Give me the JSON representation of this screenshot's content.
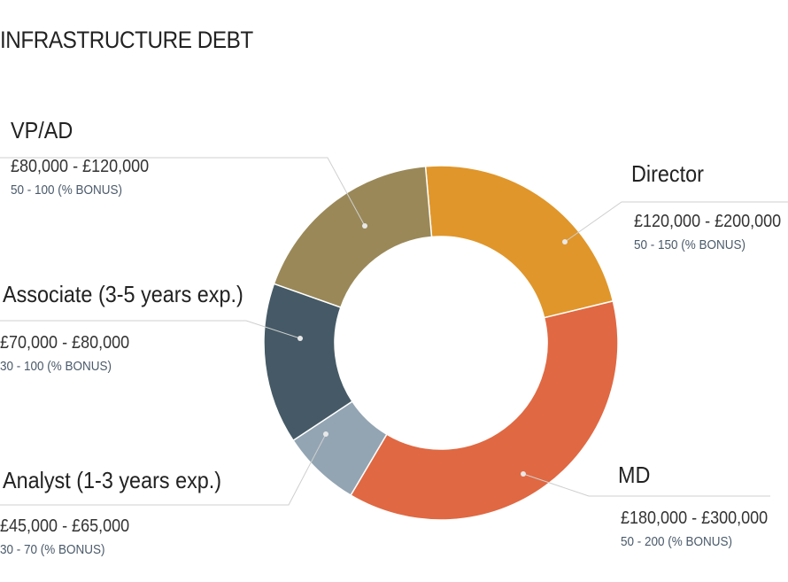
{
  "title": "INFRASTRUCTURE DEBT",
  "chart_data": {
    "type": "pie",
    "variant": "donut",
    "title": "INFRASTRUCTURE DEBT",
    "slices": [
      {
        "name": "Director",
        "salary": "£120,000 - £200,000",
        "bonus": "50 - 150 (% BONUS)",
        "share": 0.226,
        "color": "#E0962A"
      },
      {
        "name": "MD",
        "salary": "£180,000 - £300,000",
        "bonus": "50 - 200 (% BONUS)",
        "share": 0.373,
        "color": "#E06842"
      },
      {
        "name": "Analyst (1-3 years exp.)",
        "salary": "£45,000 - £65,000",
        "bonus": "30 - 70 (% BONUS)",
        "share": 0.072,
        "color": "#93A5B3"
      },
      {
        "name": "Associate (3-5 years exp.)",
        "salary": "£70,000 - £80,000",
        "bonus": "30 - 100 (% BONUS)",
        "share": 0.147,
        "color": "#455A66"
      },
      {
        "name": "VP/AD",
        "salary": "£80,000 - £120,000",
        "bonus": "50 - 100 (% BONUS)",
        "share": 0.182,
        "color": "#9A8858"
      }
    ]
  }
}
